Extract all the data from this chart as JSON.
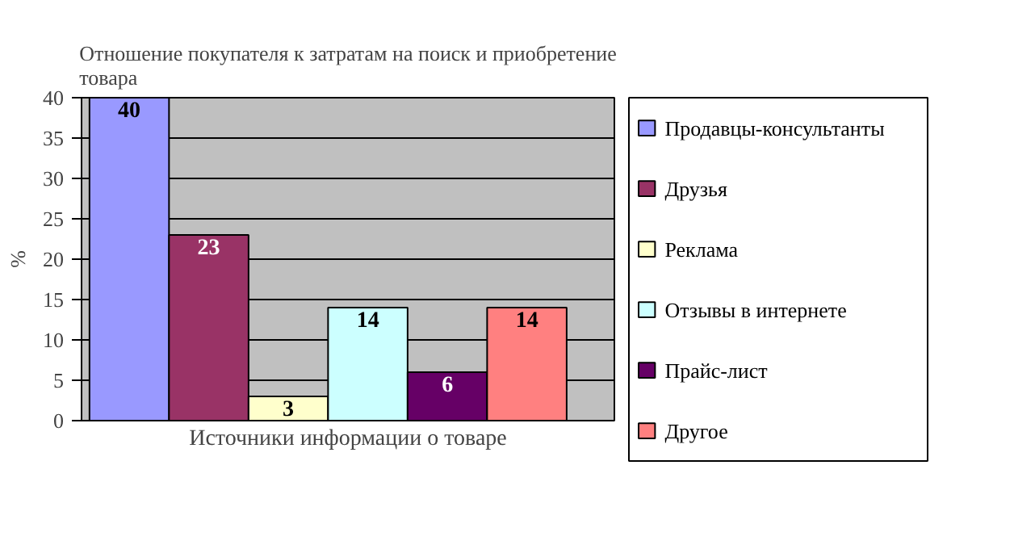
{
  "chart_data": {
    "type": "bar",
    "title": "Отношение покупателя к затратам на поиск и приобретение товара",
    "xlabel": "Источники информации о товаре",
    "ylabel": "%",
    "categories": [
      null
    ],
    "series": [
      {
        "name": "Продавцы-консультанты",
        "color": "#9999ff",
        "values": [
          40
        ]
      },
      {
        "name": "Друзья",
        "color": "#993366",
        "values": [
          23
        ]
      },
      {
        "name": "Реклама",
        "color": "#ffffcc",
        "values": [
          3
        ]
      },
      {
        "name": "Отзывы в интернете",
        "color": "#ccffff",
        "values": [
          14
        ]
      },
      {
        "name": "Прайс-лист",
        "color": "#660066",
        "values": [
          6
        ]
      },
      {
        "name": "Другое",
        "color": "#ff8080",
        "values": [
          14
        ]
      }
    ],
    "ylim": [
      0,
      40
    ],
    "yticks": [
      0,
      5,
      10,
      15,
      20,
      25,
      30,
      35,
      40
    ],
    "grid": "y",
    "legend": "right",
    "data_labels": true,
    "tick_labels": "y"
  }
}
